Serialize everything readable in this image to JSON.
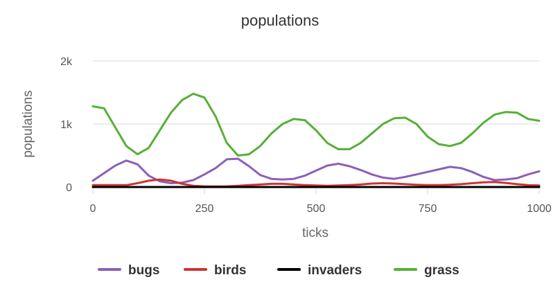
{
  "chart_data": {
    "type": "line",
    "title": "populations",
    "xlabel": "ticks",
    "ylabel": "populations",
    "xlim": [
      0,
      1000
    ],
    "ylim": [
      0,
      2000
    ],
    "x_ticks": [
      0,
      250,
      500,
      750,
      1000
    ],
    "x_tick_labels": [
      "0",
      "250",
      "500",
      "750",
      "1000"
    ],
    "y_ticks": [
      0,
      1000,
      2000
    ],
    "y_tick_labels": [
      "0",
      "1k",
      "2k"
    ],
    "grid": true,
    "legend_position": "bottom",
    "x": [
      0,
      25,
      50,
      75,
      100,
      125,
      150,
      175,
      200,
      225,
      250,
      275,
      300,
      325,
      350,
      375,
      400,
      425,
      450,
      475,
      500,
      525,
      550,
      575,
      600,
      625,
      650,
      675,
      700,
      725,
      750,
      775,
      800,
      825,
      850,
      875,
      900,
      925,
      950,
      975,
      1000
    ],
    "series": [
      {
        "name": "bugs",
        "color": "#8a5fb8",
        "values": [
          100,
          220,
          340,
          420,
          360,
          180,
          90,
          60,
          70,
          110,
          200,
          300,
          440,
          450,
          330,
          190,
          130,
          120,
          130,
          180,
          260,
          340,
          370,
          330,
          270,
          200,
          150,
          130,
          160,
          200,
          240,
          280,
          320,
          300,
          240,
          160,
          110,
          120,
          140,
          200,
          250
        ]
      },
      {
        "name": "birds",
        "color": "#cc3333",
        "values": [
          30,
          30,
          30,
          30,
          60,
          100,
          120,
          100,
          50,
          20,
          10,
          10,
          10,
          20,
          30,
          40,
          50,
          50,
          40,
          30,
          25,
          20,
          25,
          30,
          40,
          55,
          60,
          55,
          45,
          35,
          30,
          30,
          35,
          45,
          60,
          75,
          80,
          65,
          45,
          30,
          25
        ]
      },
      {
        "name": "invaders",
        "color": "#000000",
        "values": [
          0,
          0,
          0,
          0,
          0,
          0,
          0,
          0,
          0,
          0,
          0,
          0,
          0,
          0,
          0,
          0,
          0,
          0,
          0,
          0,
          0,
          0,
          0,
          0,
          0,
          0,
          0,
          0,
          0,
          0,
          0,
          0,
          0,
          0,
          0,
          0,
          0,
          0,
          0,
          0,
          0
        ]
      },
      {
        "name": "grass",
        "color": "#55b035",
        "values": [
          1280,
          1250,
          950,
          650,
          520,
          620,
          900,
          1180,
          1380,
          1480,
          1420,
          1120,
          700,
          500,
          520,
          650,
          850,
          1000,
          1080,
          1060,
          900,
          700,
          600,
          600,
          700,
          850,
          1000,
          1090,
          1100,
          1000,
          800,
          680,
          650,
          700,
          850,
          1020,
          1150,
          1190,
          1180,
          1080,
          1050
        ]
      }
    ]
  }
}
